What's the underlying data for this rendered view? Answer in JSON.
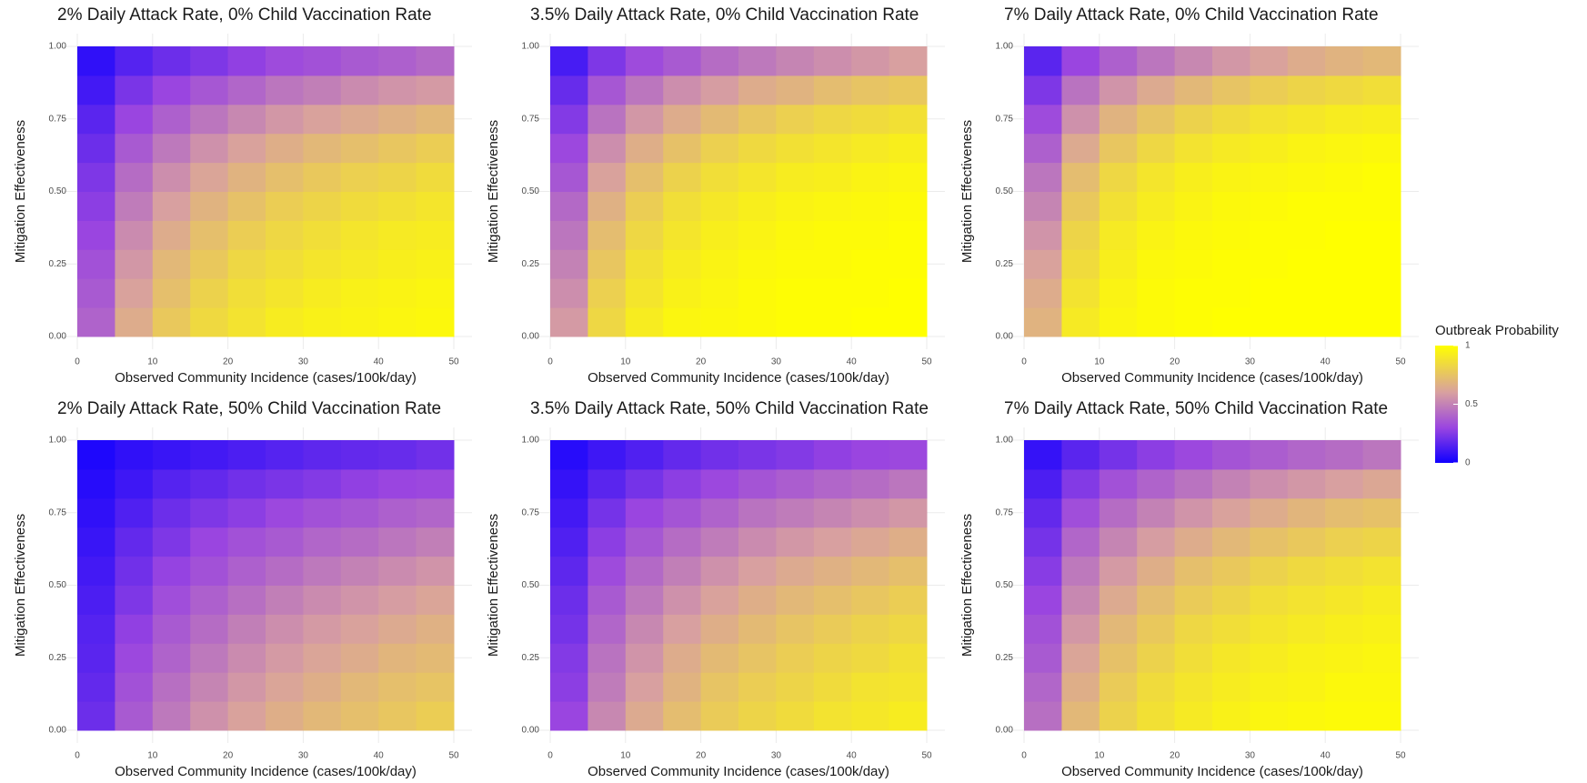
{
  "chart_data": [
    {
      "type": "heatmap",
      "title": "2% Daily Attack Rate, 0% Child Vaccination Rate",
      "x_label": "Observed Community Incidence (cases/100k/day)",
      "y_label": "Mitigation Effectiveness",
      "x": [
        2.5,
        7.5,
        12.5,
        17.5,
        22.5,
        27.5,
        32.5,
        37.5,
        42.5,
        47.5
      ],
      "y": [
        0.05,
        0.15,
        0.25,
        0.35,
        0.45,
        0.55,
        0.65,
        0.75,
        0.85,
        0.95
      ],
      "z": [
        [
          0.4,
          0.65,
          0.77,
          0.84,
          0.88,
          0.92,
          0.94,
          0.95,
          0.96,
          0.97
        ],
        [
          0.37,
          0.61,
          0.73,
          0.81,
          0.86,
          0.89,
          0.92,
          0.94,
          0.95,
          0.96
        ],
        [
          0.34,
          0.57,
          0.7,
          0.77,
          0.83,
          0.86,
          0.89,
          0.91,
          0.93,
          0.94
        ],
        [
          0.3,
          0.53,
          0.65,
          0.73,
          0.79,
          0.83,
          0.86,
          0.89,
          0.91,
          0.92
        ],
        [
          0.27,
          0.48,
          0.6,
          0.68,
          0.74,
          0.79,
          0.82,
          0.85,
          0.87,
          0.89
        ],
        [
          0.24,
          0.43,
          0.54,
          0.62,
          0.68,
          0.73,
          0.77,
          0.8,
          0.82,
          0.85
        ],
        [
          0.2,
          0.37,
          0.47,
          0.55,
          0.61,
          0.66,
          0.7,
          0.73,
          0.76,
          0.79
        ],
        [
          0.16,
          0.3,
          0.39,
          0.46,
          0.52,
          0.57,
          0.61,
          0.64,
          0.67,
          0.7
        ],
        [
          0.11,
          0.23,
          0.3,
          0.36,
          0.41,
          0.46,
          0.49,
          0.53,
          0.56,
          0.58
        ],
        [
          0.07,
          0.15,
          0.2,
          0.24,
          0.28,
          0.32,
          0.34,
          0.37,
          0.39,
          0.42
        ]
      ],
      "xlim": [
        0,
        50
      ],
      "ylim": [
        0,
        1
      ],
      "xticks": [
        0,
        10,
        20,
        30,
        40,
        50
      ],
      "yticks": [
        {
          "value": 0,
          "label": "0.00"
        },
        {
          "value": 0.25,
          "label": "0.25"
        },
        {
          "value": 0.5,
          "label": "0.50"
        },
        {
          "value": 0.75,
          "label": "0.75"
        },
        {
          "value": 1,
          "label": "1.00"
        }
      ]
    },
    {
      "type": "heatmap",
      "title": "3.5% Daily Attack Rate, 0% Child Vaccination Rate",
      "x_label": "Observed Community Incidence (cases/100k/day)",
      "y_label": "Mitigation Effectiveness",
      "x": [
        2.5,
        7.5,
        12.5,
        17.5,
        22.5,
        27.5,
        32.5,
        37.5,
        42.5,
        47.5
      ],
      "y": [
        0.05,
        0.15,
        0.25,
        0.35,
        0.45,
        0.55,
        0.65,
        0.75,
        0.85,
        0.95
      ],
      "z": [
        [
          0.58,
          0.83,
          0.92,
          0.96,
          0.97,
          0.98,
          0.99,
          0.99,
          1.0,
          1.0
        ],
        [
          0.54,
          0.8,
          0.89,
          0.94,
          0.96,
          0.98,
          0.99,
          0.99,
          0.99,
          1.0
        ],
        [
          0.5,
          0.76,
          0.87,
          0.92,
          0.95,
          0.97,
          0.98,
          0.98,
          0.99,
          0.99
        ],
        [
          0.46,
          0.72,
          0.83,
          0.89,
          0.93,
          0.95,
          0.97,
          0.98,
          0.98,
          0.99
        ],
        [
          0.42,
          0.67,
          0.79,
          0.86,
          0.9,
          0.93,
          0.95,
          0.96,
          0.97,
          0.98
        ],
        [
          0.36,
          0.61,
          0.73,
          0.81,
          0.86,
          0.89,
          0.92,
          0.93,
          0.95,
          0.96
        ],
        [
          0.31,
          0.54,
          0.66,
          0.74,
          0.8,
          0.84,
          0.87,
          0.89,
          0.91,
          0.93
        ],
        [
          0.25,
          0.45,
          0.57,
          0.65,
          0.71,
          0.76,
          0.8,
          0.83,
          0.85,
          0.87
        ],
        [
          0.19,
          0.36,
          0.46,
          0.54,
          0.59,
          0.65,
          0.68,
          0.72,
          0.75,
          0.77
        ],
        [
          0.12,
          0.24,
          0.32,
          0.37,
          0.43,
          0.47,
          0.51,
          0.54,
          0.57,
          0.6
        ]
      ],
      "xlim": [
        0,
        50
      ],
      "ylim": [
        0,
        1
      ],
      "xticks": [
        0,
        10,
        20,
        30,
        40,
        50
      ],
      "yticks": [
        {
          "value": 0,
          "label": "0.00"
        },
        {
          "value": 0.25,
          "label": "0.25"
        },
        {
          "value": 0.5,
          "label": "0.50"
        },
        {
          "value": 0.75,
          "label": "0.75"
        },
        {
          "value": 1,
          "label": "1.00"
        }
      ]
    },
    {
      "type": "heatmap",
      "title": "7% Daily Attack Rate, 0% Child Vaccination Rate",
      "x_label": "Observed Community Incidence (cases/100k/day)",
      "y_label": "Mitigation Effectiveness",
      "x": [
        2.5,
        7.5,
        12.5,
        17.5,
        22.5,
        27.5,
        32.5,
        37.5,
        42.5,
        47.5
      ],
      "y": [
        0.05,
        0.15,
        0.25,
        0.35,
        0.45,
        0.55,
        0.65,
        0.75,
        0.85,
        0.95
      ],
      "z": [
        [
          0.68,
          0.91,
          0.96,
          0.98,
          0.99,
          1.0,
          1.0,
          1.0,
          1.0,
          1.0
        ],
        [
          0.65,
          0.88,
          0.95,
          0.98,
          0.99,
          0.99,
          1.0,
          1.0,
          1.0,
          1.0
        ],
        [
          0.61,
          0.85,
          0.93,
          0.97,
          0.98,
          0.99,
          0.99,
          1.0,
          1.0,
          1.0
        ],
        [
          0.56,
          0.82,
          0.91,
          0.95,
          0.97,
          0.98,
          0.99,
          0.99,
          1.0,
          1.0
        ],
        [
          0.51,
          0.77,
          0.87,
          0.92,
          0.95,
          0.97,
          0.98,
          0.99,
          0.99,
          0.99
        ],
        [
          0.46,
          0.72,
          0.83,
          0.89,
          0.93,
          0.95,
          0.96,
          0.97,
          0.98,
          0.99
        ],
        [
          0.39,
          0.64,
          0.76,
          0.83,
          0.88,
          0.91,
          0.93,
          0.95,
          0.96,
          0.97
        ],
        [
          0.32,
          0.55,
          0.68,
          0.75,
          0.81,
          0.85,
          0.88,
          0.9,
          0.92,
          0.93
        ],
        [
          0.24,
          0.45,
          0.56,
          0.64,
          0.7,
          0.75,
          0.79,
          0.82,
          0.84,
          0.86
        ],
        [
          0.16,
          0.3,
          0.39,
          0.46,
          0.52,
          0.57,
          0.61,
          0.65,
          0.68,
          0.7
        ]
      ],
      "xlim": [
        0,
        50
      ],
      "ylim": [
        0,
        1
      ],
      "xticks": [
        0,
        10,
        20,
        30,
        40,
        50
      ],
      "yticks": [
        {
          "value": 0,
          "label": "0.00"
        },
        {
          "value": 0.25,
          "label": "0.25"
        },
        {
          "value": 0.5,
          "label": "0.50"
        },
        {
          "value": 0.75,
          "label": "0.75"
        },
        {
          "value": 1,
          "label": "1.00"
        }
      ]
    },
    {
      "type": "heatmap",
      "title": "2% Daily Attack Rate, 50% Child Vaccination Rate",
      "x_label": "Observed Community Incidence (cases/100k/day)",
      "y_label": "Mitigation Effectiveness",
      "x": [
        2.5,
        7.5,
        12.5,
        17.5,
        22.5,
        27.5,
        32.5,
        37.5,
        42.5,
        47.5
      ],
      "y": [
        0.05,
        0.15,
        0.25,
        0.35,
        0.45,
        0.55,
        0.65,
        0.75,
        0.85,
        0.95
      ],
      "z": [
        [
          0.2,
          0.37,
          0.47,
          0.55,
          0.61,
          0.66,
          0.7,
          0.73,
          0.76,
          0.79
        ],
        [
          0.18,
          0.34,
          0.44,
          0.51,
          0.57,
          0.62,
          0.66,
          0.7,
          0.73,
          0.75
        ],
        [
          0.16,
          0.31,
          0.4,
          0.47,
          0.53,
          0.58,
          0.62,
          0.65,
          0.69,
          0.71
        ],
        [
          0.15,
          0.28,
          0.37,
          0.43,
          0.49,
          0.54,
          0.58,
          0.61,
          0.64,
          0.67
        ],
        [
          0.13,
          0.24,
          0.33,
          0.39,
          0.44,
          0.49,
          0.53,
          0.56,
          0.59,
          0.62
        ],
        [
          0.11,
          0.21,
          0.29,
          0.34,
          0.39,
          0.43,
          0.47,
          0.5,
          0.53,
          0.56
        ],
        [
          0.09,
          0.18,
          0.24,
          0.3,
          0.34,
          0.37,
          0.41,
          0.43,
          0.46,
          0.49
        ],
        [
          0.07,
          0.14,
          0.2,
          0.24,
          0.27,
          0.31,
          0.34,
          0.36,
          0.39,
          0.41
        ],
        [
          0.05,
          0.1,
          0.15,
          0.18,
          0.21,
          0.23,
          0.25,
          0.28,
          0.3,
          0.31
        ],
        [
          0.03,
          0.07,
          0.09,
          0.11,
          0.13,
          0.15,
          0.17,
          0.18,
          0.19,
          0.21
        ]
      ],
      "xlim": [
        0,
        50
      ],
      "ylim": [
        0,
        1
      ],
      "xticks": [
        0,
        10,
        20,
        30,
        40,
        50
      ],
      "yticks": [
        {
          "value": 0,
          "label": "0.00"
        },
        {
          "value": 0.25,
          "label": "0.25"
        },
        {
          "value": 0.5,
          "label": "0.50"
        },
        {
          "value": 0.75,
          "label": "0.75"
        },
        {
          "value": 1,
          "label": "1.00"
        }
      ]
    },
    {
      "type": "heatmap",
      "title": "3.5% Daily Attack Rate, 50% Child Vaccination Rate",
      "x_label": "Observed Community Incidence (cases/100k/day)",
      "y_label": "Mitigation Effectiveness",
      "x": [
        2.5,
        7.5,
        12.5,
        17.5,
        22.5,
        27.5,
        32.5,
        37.5,
        42.5,
        47.5
      ],
      "y": [
        0.05,
        0.15,
        0.25,
        0.35,
        0.45,
        0.55,
        0.65,
        0.75,
        0.85,
        0.95
      ],
      "z": [
        [
          0.3,
          0.52,
          0.64,
          0.72,
          0.78,
          0.82,
          0.85,
          0.88,
          0.9,
          0.92
        ],
        [
          0.27,
          0.48,
          0.6,
          0.68,
          0.75,
          0.79,
          0.82,
          0.85,
          0.88,
          0.89
        ],
        [
          0.25,
          0.45,
          0.56,
          0.65,
          0.71,
          0.75,
          0.79,
          0.82,
          0.84,
          0.87
        ],
        [
          0.22,
          0.41,
          0.52,
          0.6,
          0.66,
          0.71,
          0.75,
          0.78,
          0.81,
          0.83
        ],
        [
          0.2,
          0.37,
          0.47,
          0.55,
          0.61,
          0.66,
          0.7,
          0.73,
          0.76,
          0.79
        ],
        [
          0.17,
          0.32,
          0.42,
          0.49,
          0.55,
          0.6,
          0.64,
          0.67,
          0.7,
          0.73
        ],
        [
          0.14,
          0.27,
          0.36,
          0.43,
          0.48,
          0.53,
          0.57,
          0.6,
          0.63,
          0.66
        ],
        [
          0.11,
          0.22,
          0.3,
          0.35,
          0.4,
          0.45,
          0.48,
          0.51,
          0.54,
          0.57
        ],
        [
          0.08,
          0.16,
          0.22,
          0.27,
          0.31,
          0.35,
          0.38,
          0.41,
          0.43,
          0.46
        ],
        [
          0.05,
          0.1,
          0.14,
          0.18,
          0.21,
          0.23,
          0.25,
          0.28,
          0.3,
          0.31
        ]
      ],
      "xlim": [
        0,
        50
      ],
      "ylim": [
        0,
        1
      ],
      "xticks": [
        0,
        10,
        20,
        30,
        40,
        50
      ],
      "yticks": [
        {
          "value": 0,
          "label": "0.00"
        },
        {
          "value": 0.25,
          "label": "0.25"
        },
        {
          "value": 0.5,
          "label": "0.50"
        },
        {
          "value": 0.75,
          "label": "0.75"
        },
        {
          "value": 1,
          "label": "1.00"
        }
      ]
    },
    {
      "type": "heatmap",
      "title": "7% Daily Attack Rate, 50% Child Vaccination Rate",
      "x_label": "Observed Community Incidence (cases/100k/day)",
      "y_label": "Mitigation Effectiveness",
      "x": [
        2.5,
        7.5,
        12.5,
        17.5,
        22.5,
        27.5,
        32.5,
        37.5,
        42.5,
        47.5
      ],
      "y": [
        0.05,
        0.15,
        0.25,
        0.35,
        0.45,
        0.55,
        0.65,
        0.75,
        0.85,
        0.95
      ],
      "z": [
        [
          0.44,
          0.7,
          0.81,
          0.87,
          0.91,
          0.94,
          0.96,
          0.97,
          0.98,
          0.98
        ],
        [
          0.41,
          0.66,
          0.78,
          0.85,
          0.89,
          0.92,
          0.94,
          0.95,
          0.97,
          0.97
        ],
        [
          0.37,
          0.62,
          0.74,
          0.81,
          0.86,
          0.9,
          0.92,
          0.94,
          0.95,
          0.96
        ],
        [
          0.34,
          0.57,
          0.7,
          0.77,
          0.83,
          0.86,
          0.89,
          0.91,
          0.93,
          0.94
        ],
        [
          0.3,
          0.52,
          0.64,
          0.72,
          0.78,
          0.82,
          0.86,
          0.88,
          0.9,
          0.92
        ],
        [
          0.26,
          0.47,
          0.58,
          0.66,
          0.73,
          0.77,
          0.81,
          0.84,
          0.86,
          0.88
        ],
        [
          0.22,
          0.41,
          0.51,
          0.59,
          0.65,
          0.7,
          0.74,
          0.77,
          0.8,
          0.82
        ],
        [
          0.18,
          0.33,
          0.43,
          0.5,
          0.56,
          0.61,
          0.65,
          0.69,
          0.72,
          0.74
        ],
        [
          0.13,
          0.25,
          0.34,
          0.4,
          0.45,
          0.5,
          0.54,
          0.57,
          0.6,
          0.63
        ],
        [
          0.08,
          0.16,
          0.22,
          0.27,
          0.31,
          0.35,
          0.38,
          0.41,
          0.43,
          0.46
        ]
      ],
      "xlim": [
        0,
        50
      ],
      "ylim": [
        0,
        1
      ],
      "xticks": [
        0,
        10,
        20,
        30,
        40,
        50
      ],
      "yticks": [
        {
          "value": 0,
          "label": "0.00"
        },
        {
          "value": 0.25,
          "label": "0.25"
        },
        {
          "value": 0.5,
          "label": "0.50"
        },
        {
          "value": 0.75,
          "label": "0.75"
        },
        {
          "value": 1,
          "label": "1.00"
        }
      ]
    }
  ],
  "legend": {
    "title": "Outbreak Probability",
    "lim": [
      0,
      1
    ],
    "ticks": [
      0,
      0.5,
      1
    ],
    "colorscale": [
      [
        0,
        "#1000ff"
      ],
      [
        0.3,
        "#9a45e0"
      ],
      [
        0.6,
        "#d8a0a0"
      ],
      [
        1,
        "#ffff00"
      ]
    ]
  }
}
